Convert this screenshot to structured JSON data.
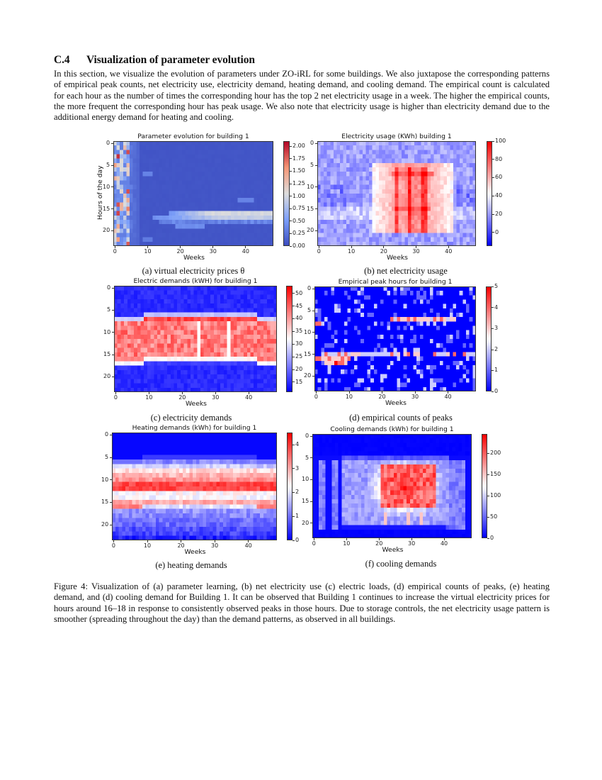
{
  "section": {
    "number": "C.4",
    "title": "Visualization of parameter evolution"
  },
  "intro": "In this section, we visualize the evolution of parameters under ZO-iRL for some buildings. We also juxtapose the corresponding patterns of empirical peak counts, net electricity use, electricity demand, heating demand, and cooling demand. The empirical count is calculated for each hour as the number of times the corresponding hour has the top 2 net electricity usage in a week. The higher the empirical counts, the more frequent the corresponding hour has peak usage. We also note that electricity usage is higher than electricity demand due to the additional energy demand for heating and cooling.",
  "figure": {
    "caption": "Figure 4: Visualization of (a) parameter learning, (b) net electricity use (c) electric loads, (d) empirical counts of peaks, (e) heating demand, and (d) cooling demand for Building 1. It can be observed that Building 1 continues to increase the virtual electricity prices for hours around 16–18 in response to consistently observed peaks in those hours. Due to storage controls, the net electricity usage pattern is smoother (spreading throughout the day) than the demand patterns, as observed in all buildings."
  },
  "chart_data": [
    {
      "id": "a",
      "type": "heatmap",
      "title": "Parameter evolution for building 1",
      "subcaption": "(a) virtual electricity prices θ",
      "xlabel": "Weeks",
      "ylabel": "Hours of the day",
      "x_ticks": [
        "0",
        "10",
        "20",
        "30",
        "40"
      ],
      "y_ticks": [
        "0",
        "5",
        "10",
        "15",
        "20"
      ],
      "x_range": [
        0,
        48
      ],
      "y_range": [
        0,
        23
      ],
      "colormap": "coolwarm",
      "colorbar_ticks": [
        "0.00",
        "0.25",
        "0.50",
        "0.75",
        "1.00",
        "1.25",
        "1.50",
        "1.75",
        "2.00"
      ],
      "colorbar_range": [
        0.0,
        2.1
      ],
      "description": "Random prices (0-2.1) in weeks 0-4, then near 0 everywhere except hours 16-18 which rise to ~0.6-1.1 from week ~12 to 48; hour 19 ~0.4 weeks 19-27; hour 13 ~0.4 weeks 38-42",
      "pattern": "param"
    },
    {
      "id": "b",
      "type": "heatmap",
      "title": "Electricity usage (KWh) building 1",
      "subcaption": "(b) net electricity usage",
      "xlabel": "Weeks",
      "ylabel": "",
      "x_ticks": [
        "0",
        "10",
        "20",
        "30",
        "40"
      ],
      "y_ticks": [
        "0",
        "5",
        "10",
        "15",
        "20"
      ],
      "x_range": [
        0,
        48
      ],
      "y_range": [
        0,
        23
      ],
      "colormap": "bwr",
      "colorbar_ticks": [
        "0",
        "20",
        "40",
        "60",
        "80",
        "100"
      ],
      "colorbar_range": [
        -15,
        100
      ],
      "description": "Low (0-30) outside summer; weeks 17-41 hours 5-20 elevated 40-70; peaks ~100 at weeks 24, 28, 32-33 hours 7 and 15",
      "pattern": "usage"
    },
    {
      "id": "c",
      "type": "heatmap",
      "title": "Electric demands (kWH) for building 1",
      "subcaption": "(c) electricity demands",
      "xlabel": "Weeks",
      "ylabel": "",
      "x_ticks": [
        "0",
        "10",
        "20",
        "30",
        "40"
      ],
      "y_ticks": [
        "0",
        "5",
        "10",
        "15",
        "20"
      ],
      "x_range": [
        0,
        48
      ],
      "y_range": [
        0,
        23
      ],
      "colormap": "bwr",
      "colorbar_ticks": [
        "15",
        "20",
        "25",
        "30",
        "35",
        "40",
        "45",
        "50"
      ],
      "colorbar_range": [
        11,
        53
      ],
      "description": "Night hours ~13-15; working hours 8-16 ~40-50 (weeks 9-42 starting hour 7); transitional hours ~25-30",
      "pattern": "demand"
    },
    {
      "id": "d",
      "type": "heatmap",
      "title": "Empirical peak hours for building 1",
      "subcaption": "(d) empirical counts of peaks",
      "xlabel": "Weeks",
      "ylabel": "",
      "x_ticks": [
        "0",
        "10",
        "20",
        "30",
        "40"
      ],
      "y_ticks": [
        "0",
        "5",
        "10",
        "15",
        "20"
      ],
      "x_range": [
        0,
        48
      ],
      "y_range": [
        0,
        23
      ],
      "colormap": "bwr",
      "colorbar_ticks": [
        "0",
        "1",
        "2",
        "3",
        "4",
        "5"
      ],
      "colorbar_range": [
        0,
        5
      ],
      "description": "Sparse counts 0-2 scattered; strong band of 3-5 at hours 15-17 (weeks 0-47) and hour 7 (weeks 23-42)",
      "pattern": "peaks"
    },
    {
      "id": "e",
      "type": "heatmap",
      "title": "Heating demands (kWh) for building 1",
      "subcaption": "(e) heating demands",
      "xlabel": "Weeks",
      "ylabel": "",
      "x_ticks": [
        "0",
        "10",
        "20",
        "30",
        "40"
      ],
      "y_ticks": [
        "0",
        "5",
        "10",
        "15",
        "20"
      ],
      "x_range": [
        0,
        48
      ],
      "y_range": [
        0,
        23
      ],
      "colormap": "bwr",
      "colorbar_ticks": [
        "0",
        "1",
        "2",
        "3",
        "4"
      ],
      "colorbar_range": [
        0,
        4.5
      ],
      "description": "0 at hours 0-5; peak ~4 at hours 11-12; ~3 at hours 8-10 and 15-16; ~1 at hours 17-23",
      "pattern": "heating"
    },
    {
      "id": "f",
      "type": "heatmap",
      "title": "Cooling demands (kWh) for building 1",
      "subcaption": "(f) cooling demands",
      "xlabel": "Weeks",
      "ylabel": "",
      "x_ticks": [
        "0",
        "10",
        "20",
        "30",
        "40"
      ],
      "y_ticks": [
        "0",
        "5",
        "10",
        "15",
        "20"
      ],
      "x_range": [
        0,
        48
      ],
      "y_range": [
        0,
        23
      ],
      "colormap": "bwr",
      "colorbar_ticks": [
        "0",
        "50",
        "100",
        "150",
        "200"
      ],
      "colorbar_range": [
        0,
        245
      ],
      "description": "0 for hours 0-4 and 22-23; summer weeks 20-37 hours 7-17 ~180-240; shoulder weeks ~50-120",
      "pattern": "cooling"
    }
  ]
}
